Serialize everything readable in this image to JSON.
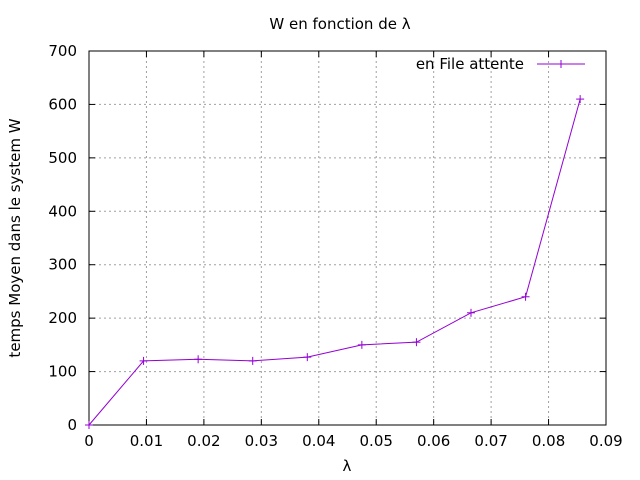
{
  "chart_data": {
    "type": "line",
    "title": "W en fonction de λ",
    "xlabel": "λ",
    "ylabel": "temps Moyen dans le system W",
    "xlim": [
      0,
      0.09
    ],
    "ylim": [
      0,
      700
    ],
    "xticks": [
      0,
      0.01,
      0.02,
      0.03,
      0.04,
      0.05,
      0.06,
      0.07,
      0.08,
      0.09
    ],
    "xtick_labels": [
      "0",
      "0.01",
      "0.02",
      "0.03",
      "0.04",
      "0.05",
      "0.06",
      "0.07",
      "0.08",
      "0.09"
    ],
    "yticks": [
      0,
      100,
      200,
      300,
      400,
      500,
      600,
      700
    ],
    "ytick_labels": [
      "0",
      "100",
      "200",
      "300",
      "400",
      "500",
      "600",
      "700"
    ],
    "grid": true,
    "legend_position": "top-right",
    "series": [
      {
        "name": "en File attente",
        "color": "#9400d3",
        "marker": "plus",
        "x": [
          0,
          0.0095,
          0.019,
          0.0285,
          0.038,
          0.0475,
          0.057,
          0.0665,
          0.076,
          0.0855
        ],
        "y": [
          0,
          120,
          123,
          120,
          127,
          150,
          155,
          210,
          240,
          610
        ]
      }
    ]
  }
}
